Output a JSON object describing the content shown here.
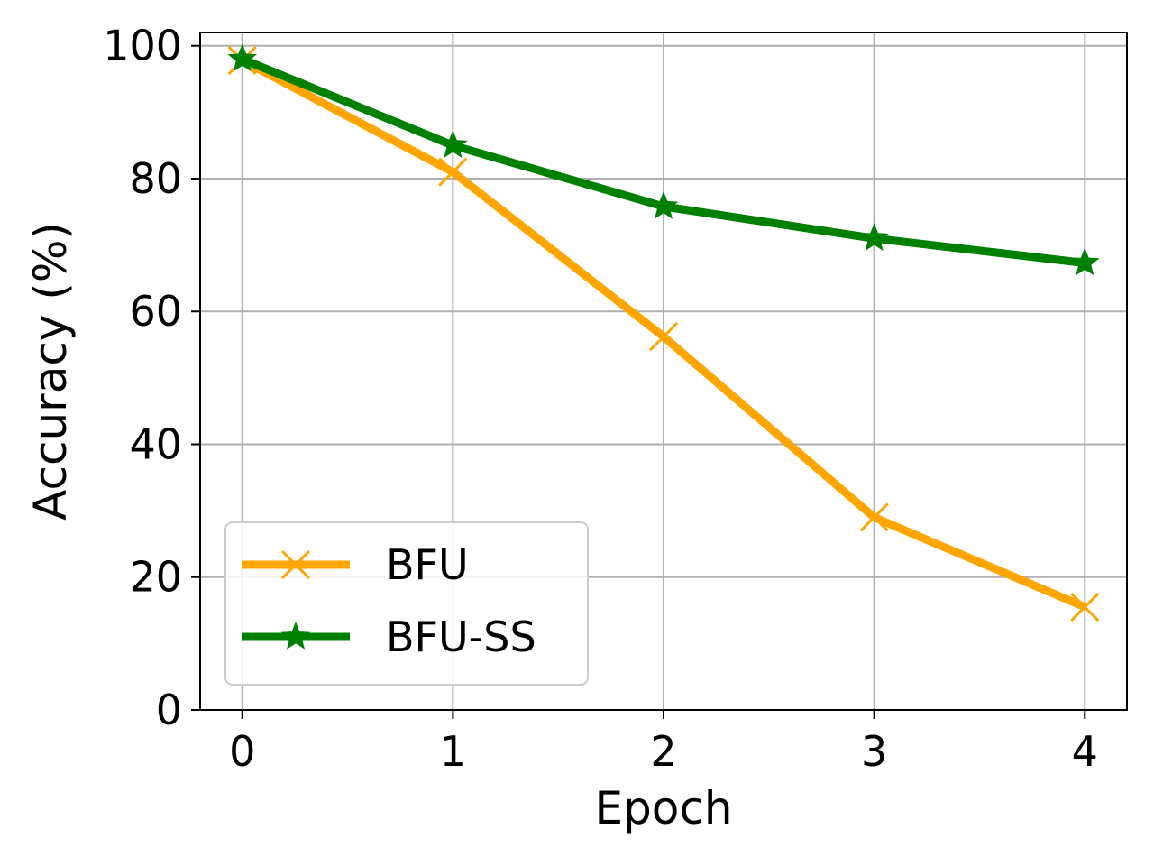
{
  "chart_data": {
    "type": "line",
    "xlabel": "Epoch",
    "ylabel": "Accuracy (%)",
    "x": [
      0,
      1,
      2,
      3,
      4
    ],
    "xlim": [
      -0.2,
      4.2
    ],
    "ylim": [
      0,
      102
    ],
    "xticks": [
      0,
      1,
      2,
      3,
      4
    ],
    "yticks": [
      0,
      20,
      40,
      60,
      80,
      100
    ],
    "grid": true,
    "legend_position": "lower-left",
    "series": [
      {
        "name": "BFU",
        "values": [
          97.8,
          81.0,
          56.2,
          29.0,
          15.5
        ],
        "color": "#FFA500",
        "marker": "x"
      },
      {
        "name": "BFU-SS",
        "values": [
          98.0,
          85.0,
          75.8,
          71.0,
          67.3
        ],
        "color": "#008000",
        "marker": "star"
      }
    ]
  }
}
